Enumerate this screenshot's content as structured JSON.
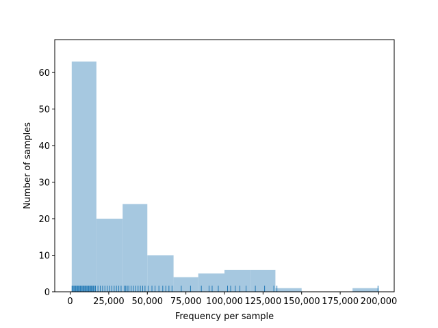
{
  "chart_data": {
    "type": "histogram",
    "xlabel": "Frequency per sample",
    "ylabel": "Number of samples",
    "xlim": [
      -10000,
      210000
    ],
    "ylim": [
      0,
      69
    ],
    "bin_edges": [
      1000,
      17000,
      34000,
      50000,
      67000,
      83000,
      100000,
      117000,
      133000,
      150000,
      167000,
      183000,
      200000
    ],
    "counts": [
      63,
      20,
      24,
      10,
      4,
      5,
      6,
      6,
      1,
      0,
      0,
      1
    ],
    "x_ticks": [
      0,
      25000,
      50000,
      75000,
      100000,
      125000,
      150000,
      175000,
      200000
    ],
    "x_tick_labels": [
      "0",
      "25,000",
      "50,000",
      "75,000",
      "100,000",
      "125,000",
      "150,000",
      "175,000",
      "200,000"
    ],
    "y_ticks": [
      0,
      10,
      20,
      30,
      40,
      50,
      60
    ],
    "y_tick_labels": [
      "0",
      "10",
      "20",
      "30",
      "40",
      "50",
      "60"
    ],
    "rug": [
      1200,
      1800,
      2400,
      3000,
      3600,
      4200,
      4800,
      5400,
      6000,
      6600,
      7200,
      7800,
      8400,
      9000,
      9600,
      10200,
      10800,
      11400,
      12000,
      12600,
      13200,
      13800,
      14400,
      15000,
      15600,
      16400,
      18000,
      19500,
      21000,
      22500,
      24000,
      25500,
      27000,
      28500,
      30000,
      31500,
      33000,
      35000,
      36000,
      37000,
      38000,
      39500,
      41000,
      42500,
      44000,
      45500,
      47000,
      48500,
      50500,
      53000,
      55000,
      57500,
      60000,
      62000,
      64000,
      66000,
      72000,
      78000,
      85000,
      90000,
      92000,
      96000,
      102000,
      104000,
      107000,
      110000,
      114000,
      120000,
      126000,
      132000,
      134000,
      199500
    ],
    "bar_color": "#a6c8e0",
    "rug_color": "#1f77b4"
  }
}
